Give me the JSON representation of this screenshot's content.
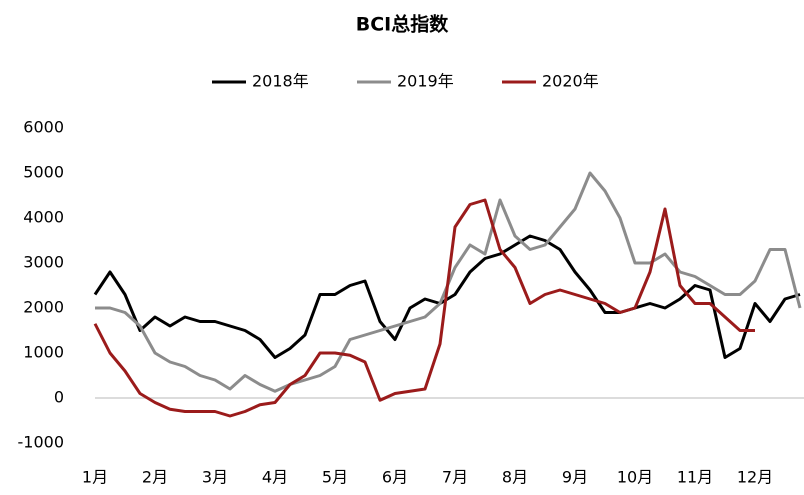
{
  "chart_data": {
    "type": "line",
    "title": "BCI总指数",
    "categories": [
      "1月",
      null,
      null,
      null,
      "2月",
      null,
      null,
      null,
      "3月",
      null,
      null,
      null,
      "4月",
      null,
      null,
      null,
      "5月",
      null,
      null,
      null,
      "6月",
      null,
      null,
      null,
      "7月",
      null,
      null,
      null,
      "8月",
      null,
      null,
      null,
      "9月",
      null,
      null,
      null,
      "10月",
      null,
      null,
      null,
      "11月",
      null,
      null,
      null,
      "12月",
      null,
      null,
      null
    ],
    "series": [
      {
        "name": "2018年",
        "color": "#000000",
        "values": [
          2300,
          2800,
          2300,
          1500,
          1800,
          1600,
          1800,
          1700,
          1700,
          1600,
          1500,
          1300,
          900,
          1100,
          1400,
          2300,
          2300,
          2500,
          2600,
          1700,
          1300,
          2000,
          2200,
          2100,
          2300,
          2800,
          3100,
          3200,
          3400,
          3600,
          3500,
          3300,
          2800,
          2400,
          1900,
          1900,
          2000,
          2100,
          2000,
          2200,
          2500,
          2400,
          900,
          1100,
          2100,
          1700,
          2200,
          2300
        ]
      },
      {
        "name": "2019年",
        "color": "#8c8c8c",
        "values": [
          2000,
          2000,
          1900,
          1600,
          1000,
          800,
          700,
          500,
          400,
          200,
          500,
          300,
          150,
          300,
          400,
          500,
          700,
          1300,
          1400,
          1500,
          1600,
          1700,
          1800,
          2100,
          2900,
          3400,
          3200,
          4400,
          3600,
          3300,
          3400,
          3800,
          4200,
          5000,
          4600,
          4000,
          3000,
          3000,
          3200,
          2800,
          2700,
          2500,
          2300,
          2300,
          2600,
          3300,
          3300,
          2000
        ]
      },
      {
        "name": "2020年",
        "color": "#9b1b1b",
        "values": [
          1650,
          1000,
          600,
          100,
          -100,
          -250,
          -300,
          -300,
          -300,
          -400,
          -300,
          -150,
          -100,
          300,
          500,
          1000,
          1000,
          950,
          800,
          -50,
          100,
          150,
          200,
          1200,
          3800,
          4300,
          4400,
          3300,
          2900,
          2100,
          2300,
          2400,
          2300,
          2200,
          2100,
          1900,
          2000,
          2800,
          4200,
          2500,
          2100,
          2100,
          1800,
          1500,
          1500,
          null,
          null,
          null
        ]
      }
    ],
    "ylim": [
      -1000,
      6000
    ],
    "yticks": [
      -1000,
      0,
      1000,
      2000,
      3000,
      4000,
      5000,
      6000
    ]
  }
}
